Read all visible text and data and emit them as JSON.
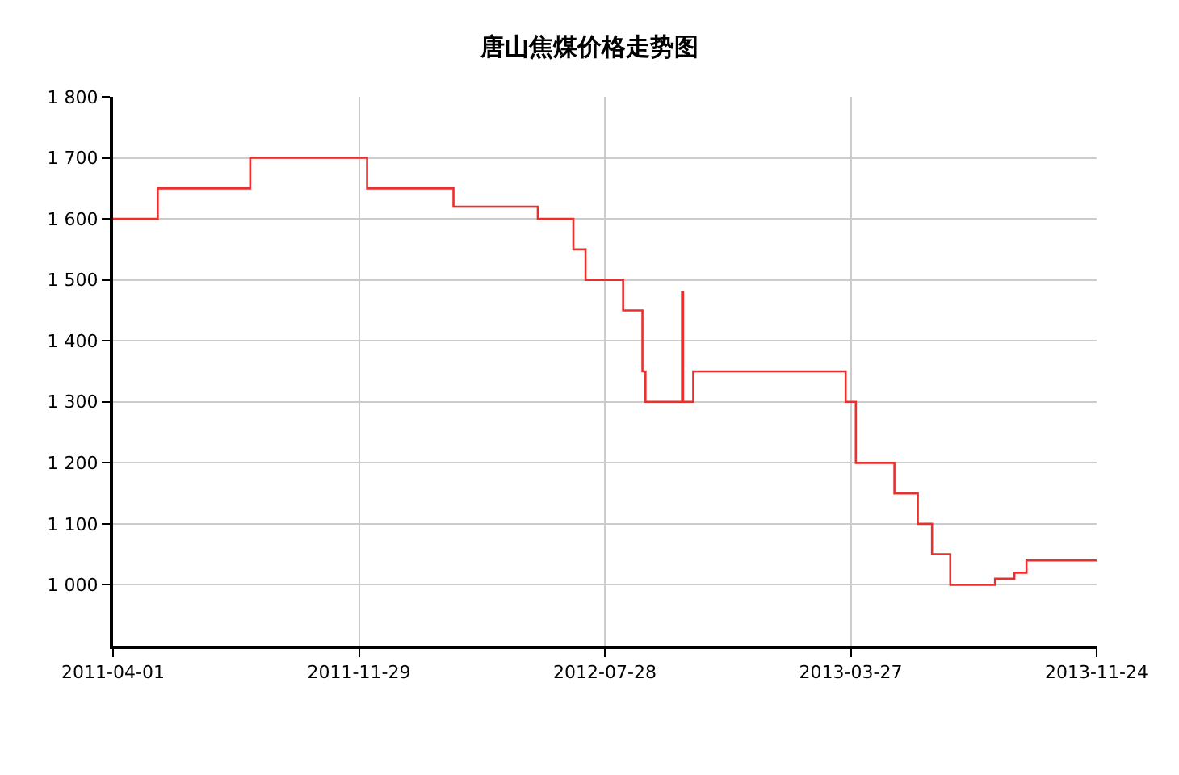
{
  "chart_data": {
    "type": "step",
    "title": "唐山焦煤价格走势图",
    "x": [
      "2011-04-01",
      "2011-05-15",
      "2011-08-14",
      "2011-12-07",
      "2012-03-01",
      "2012-05-23",
      "2012-06-27",
      "2012-07-09",
      "2012-08-15",
      "2012-09-03",
      "2012-09-06",
      "2012-10-12",
      "2012-10-13",
      "2012-10-23",
      "2013-03-22",
      "2013-04-01",
      "2013-05-09",
      "2013-06-01",
      "2013-06-15",
      "2013-07-03",
      "2013-08-16",
      "2013-09-04",
      "2013-09-16",
      "2013-11-24"
    ],
    "series": [
      {
        "color": "#e8312f",
        "values": [
          1600,
          1650,
          1700,
          1650,
          1620,
          1600,
          1550,
          1500,
          1450,
          1350,
          1300,
          1480,
          1300,
          1350,
          1300,
          1200,
          1150,
          1100,
          1050,
          1000,
          1010,
          1020,
          1040,
          1040
        ]
      }
    ],
    "xlim": [
      "2011-04-01",
      "2013-11-24"
    ],
    "xticks": [
      "2011-04-01",
      "2011-11-29",
      "2012-07-28",
      "2013-03-27",
      "2013-11-24"
    ],
    "ylim": [
      900,
      1800
    ],
    "yticks": [
      {
        "value": 1000,
        "label": "1 000"
      },
      {
        "value": 1100,
        "label": "1 100"
      },
      {
        "value": 1200,
        "label": "1 200"
      },
      {
        "value": 1300,
        "label": "1 300"
      },
      {
        "value": 1400,
        "label": "1 400"
      },
      {
        "value": 1500,
        "label": "1 500"
      },
      {
        "value": 1600,
        "label": "1 600"
      },
      {
        "value": 1700,
        "label": "1 700"
      },
      {
        "value": 1800,
        "label": "1 800"
      }
    ],
    "grid": true,
    "marker": "none",
    "line_style": "solid"
  }
}
